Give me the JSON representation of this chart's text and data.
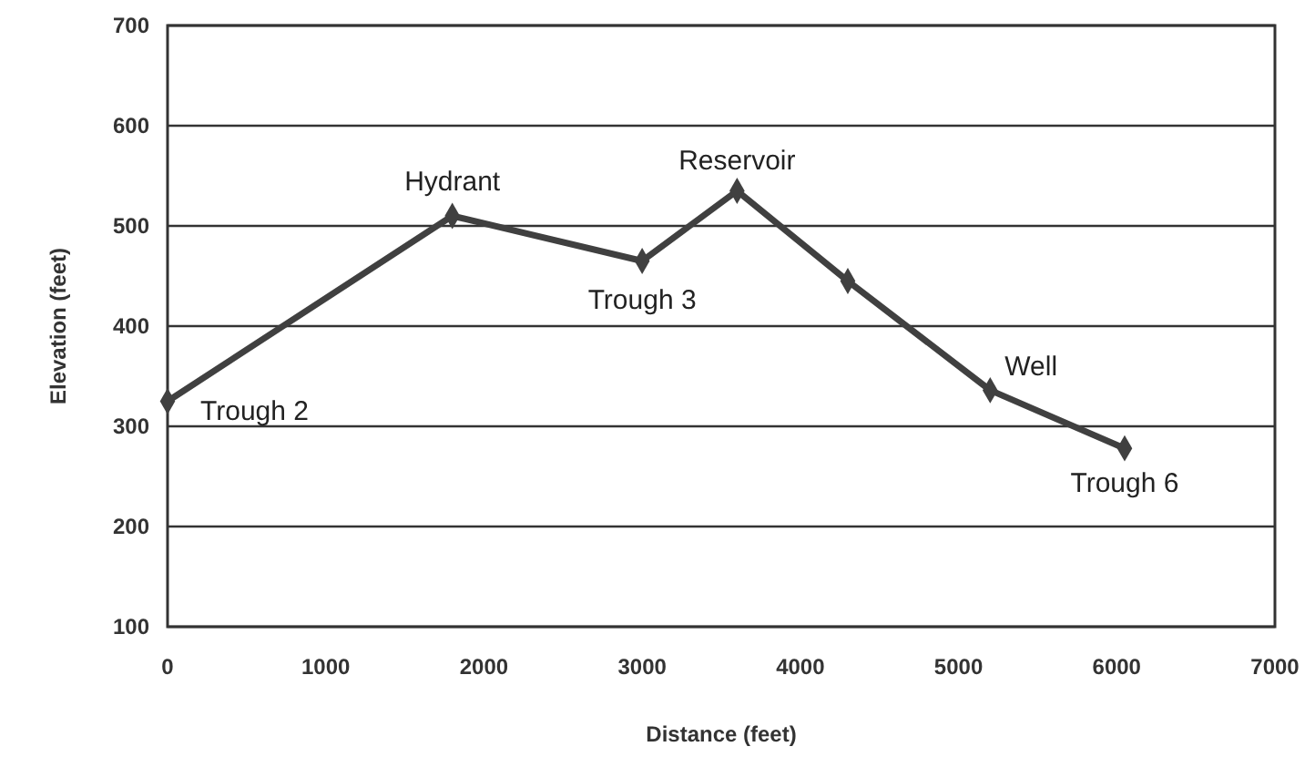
{
  "chart_data": {
    "type": "line",
    "xlabel": "Distance (feet)",
    "ylabel": "Elevation (feet)",
    "x": [
      0,
      1800,
      3000,
      3600,
      4300,
      5200,
      6050
    ],
    "series": [
      {
        "color": "#404040",
        "values": [
          325,
          510,
          465,
          535,
          445,
          336,
          278
        ]
      }
    ],
    "xlim": [
      0,
      7000
    ],
    "xticks": [
      0,
      1000,
      2000,
      3000,
      4000,
      5000,
      6000,
      7000
    ],
    "ylim": [
      100,
      700
    ],
    "yticks": [
      100,
      200,
      300,
      400,
      500,
      600,
      700
    ],
    "grid": "y",
    "marker": "diamond",
    "line_style": "solid",
    "annotations": [
      {
        "text": "Trough 2",
        "x": 0,
        "y": 325
      },
      {
        "text": "Hydrant",
        "x": 1800,
        "y": 510
      },
      {
        "text": "Trough 3",
        "x": 3000,
        "y": 465
      },
      {
        "text": "Reservoir",
        "x": 3600,
        "y": 535
      },
      {
        "text": "Well",
        "x": 5200,
        "y": 336
      },
      {
        "text": "Trough 6",
        "x": 6050,
        "y": 278
      }
    ]
  }
}
